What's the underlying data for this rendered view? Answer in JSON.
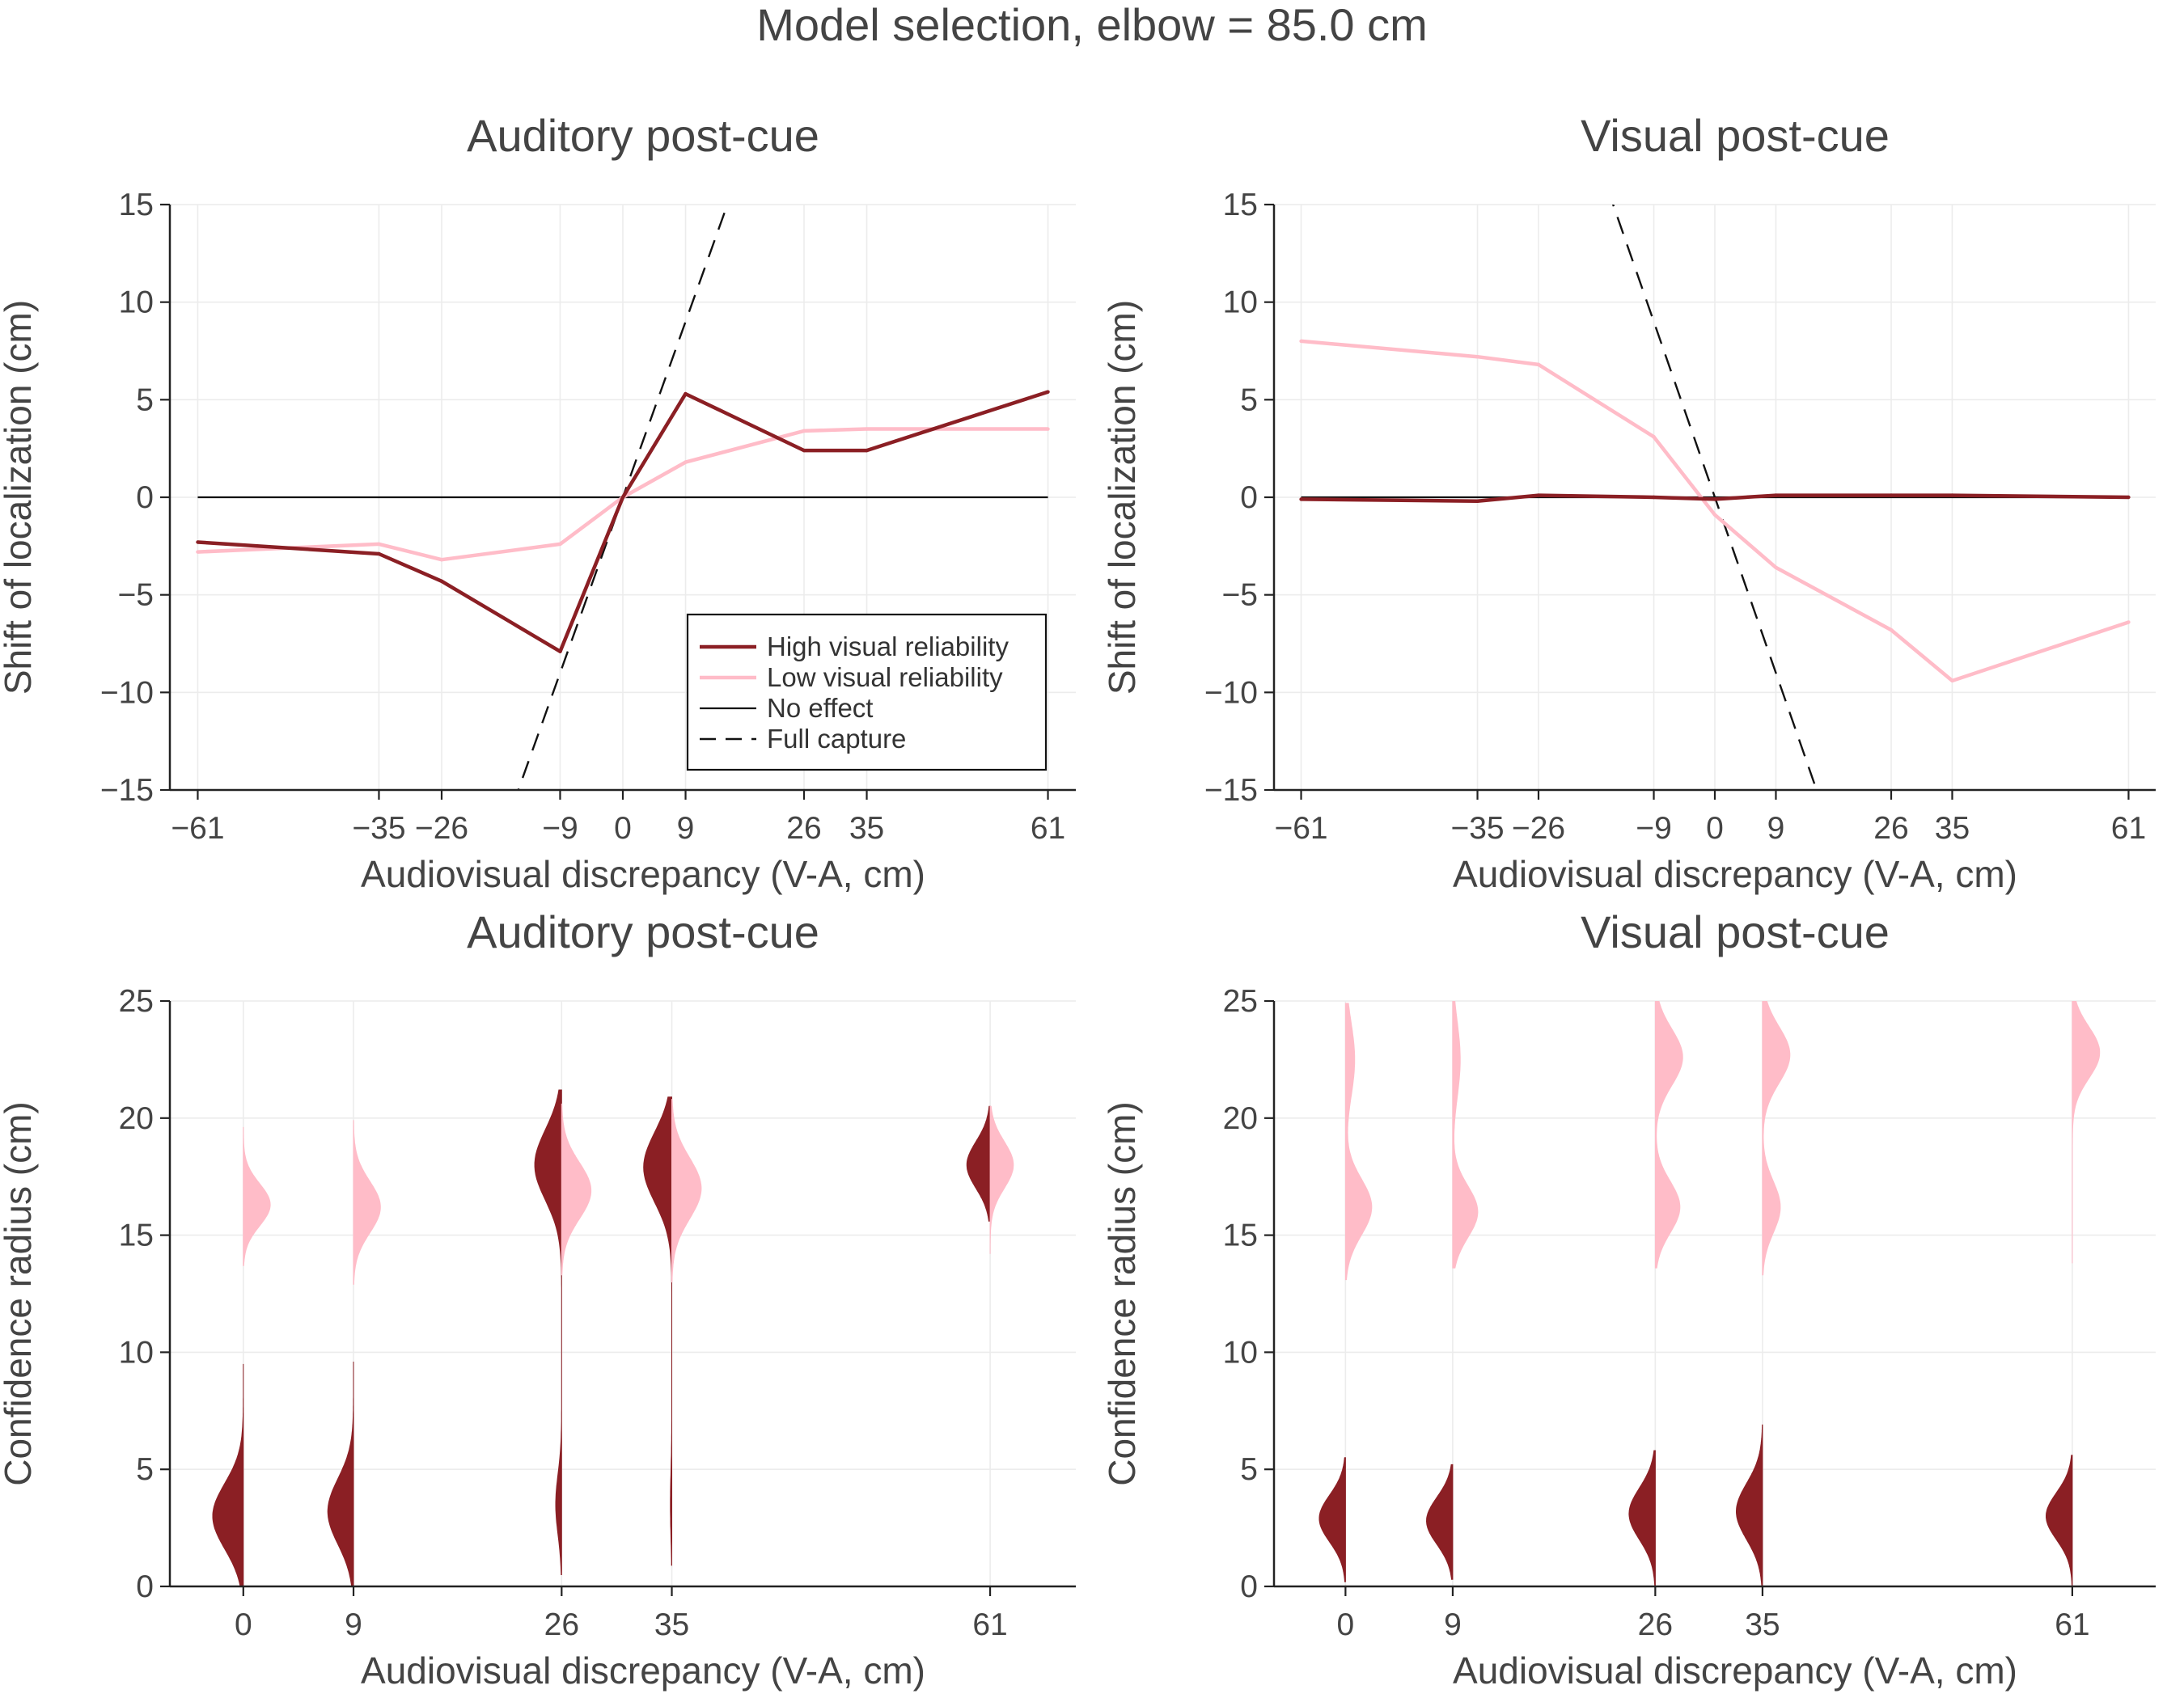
{
  "figure": {
    "title": "Model selection, elbow = 85.0 cm"
  },
  "colors": {
    "high": "#8b1f24",
    "low": "#ffbcc8",
    "no_effect": "#111111",
    "full_capture": "#111111",
    "grid": "#ececec",
    "axis": "#222222"
  },
  "legend": {
    "placement": "lower-right",
    "entries": [
      {
        "label": "High visual reliability",
        "style": "high"
      },
      {
        "label": "Low visual reliability",
        "style": "low"
      },
      {
        "label": "No effect",
        "style": "no_effect"
      },
      {
        "label": "Full capture",
        "style": "full_capture"
      }
    ]
  },
  "chart_data": [
    {
      "type": "line",
      "title": "Auditory post-cue",
      "xlabel": "Audiovisual discrepancy (V-A, cm)",
      "ylabel": "Shift of localization (cm)",
      "x": [
        -61,
        -35,
        -26,
        -9,
        0,
        9,
        26,
        35,
        61
      ],
      "xticklabels": [
        "−61",
        "−35",
        "−26",
        "−9",
        "0",
        "9",
        "26",
        "35",
        "61"
      ],
      "yticks": [
        -15,
        -10,
        -5,
        0,
        5,
        10,
        15
      ],
      "yticklabels": [
        "−15",
        "−10",
        "−5",
        "0",
        "5",
        "10",
        "15"
      ],
      "xlim": [
        -65,
        65
      ],
      "ylim": [
        -15,
        15
      ],
      "grid": true,
      "legend": true,
      "reference_no_effect_slope": 0,
      "reference_full_capture_slope": 1,
      "series": [
        {
          "name": "High visual reliability",
          "style": "high",
          "values": [
            -2.3,
            -2.9,
            -4.3,
            -7.9,
            0.0,
            5.3,
            2.4,
            2.4,
            5.4
          ]
        },
        {
          "name": "Low visual reliability",
          "style": "low",
          "values": [
            -2.8,
            -2.4,
            -3.2,
            -2.4,
            0.0,
            1.8,
            3.4,
            3.5,
            3.5
          ]
        }
      ]
    },
    {
      "type": "line",
      "title": "Visual post-cue",
      "xlabel": "Audiovisual discrepancy (V-A, cm)",
      "ylabel": "Shift of localization (cm)",
      "x": [
        -61,
        -35,
        -26,
        -9,
        0,
        9,
        26,
        35,
        61
      ],
      "xticklabels": [
        "−61",
        "−35",
        "−26",
        "−9",
        "0",
        "9",
        "26",
        "35",
        "61"
      ],
      "yticks": [
        -15,
        -10,
        -5,
        0,
        5,
        10,
        15
      ],
      "yticklabels": [
        "−15",
        "−10",
        "−5",
        "0",
        "5",
        "10",
        "15"
      ],
      "xlim": [
        -65,
        65
      ],
      "ylim": [
        -15,
        15
      ],
      "grid": true,
      "legend": false,
      "reference_no_effect_slope": 0,
      "reference_full_capture_slope": -1,
      "series": [
        {
          "name": "High visual reliability",
          "style": "high",
          "values": [
            -0.1,
            -0.2,
            0.1,
            0.0,
            -0.1,
            0.1,
            0.1,
            0.1,
            0.0
          ]
        },
        {
          "name": "Low visual reliability",
          "style": "low",
          "values": [
            8.0,
            7.2,
            6.8,
            3.1,
            -0.9,
            -3.6,
            -6.8,
            -9.4,
            -6.4
          ]
        }
      ]
    },
    {
      "type": "violin",
      "title": "Auditory post-cue",
      "xlabel": "Audiovisual discrepancy (V-A, cm)",
      "ylabel": "Confidence radius (cm)",
      "x": [
        0,
        9,
        26,
        35,
        61
      ],
      "xticklabels": [
        "0",
        "9",
        "26",
        "35",
        "61"
      ],
      "yticks": [
        0,
        5,
        10,
        15,
        20,
        25
      ],
      "yticklabels": [
        "0",
        "5",
        "10",
        "15",
        "20",
        "25"
      ],
      "xlim": [
        -6,
        68
      ],
      "ylim": [
        0,
        25
      ],
      "grid": true,
      "violins": [
        {
          "x": 0,
          "side": "left",
          "style": "high",
          "lo": 0.0,
          "hi": 9.5,
          "comps": [
            {
              "mu": 3.0,
              "sd": 1.4,
              "w": 1.0,
              "amp": 2.5
            },
            {
              "mu": 17.3,
              "sd": 1.1,
              "w": 0.5,
              "amp": 0.3
            }
          ]
        },
        {
          "x": 0,
          "side": "right",
          "style": "low",
          "lo": 13.7,
          "hi": 19.6,
          "comps": [
            {
              "mu": 16.3,
              "sd": 0.9,
              "w": 1.0,
              "amp": 2.2
            }
          ]
        },
        {
          "x": 9,
          "side": "left",
          "style": "high",
          "lo": 0.0,
          "hi": 9.6,
          "comps": [
            {
              "mu": 3.2,
              "sd": 1.4,
              "w": 1.0,
              "amp": 2.1
            },
            {
              "mu": 17.2,
              "sd": 1.2,
              "w": 0.5,
              "amp": 0.3
            }
          ]
        },
        {
          "x": 9,
          "side": "right",
          "style": "low",
          "lo": 12.9,
          "hi": 19.9,
          "comps": [
            {
              "mu": 16.2,
              "sd": 1.1,
              "w": 1.0,
              "amp": 2.2
            }
          ]
        },
        {
          "x": 26,
          "side": "left",
          "style": "high",
          "lo": 0.5,
          "hi": 21.2,
          "comps": [
            {
              "mu": 18.0,
              "sd": 1.5,
              "w": 1.0,
              "amp": 2.2
            },
            {
              "mu": 3.5,
              "sd": 1.3,
              "w": 0.22,
              "amp": 0.5
            }
          ]
        },
        {
          "x": 26,
          "side": "right",
          "style": "low",
          "lo": 13.3,
          "hi": 20.6,
          "comps": [
            {
              "mu": 16.9,
              "sd": 1.2,
              "w": 1.0,
              "amp": 2.4
            }
          ]
        },
        {
          "x": 35,
          "side": "left",
          "style": "high",
          "lo": 0.9,
          "hi": 20.9,
          "comps": [
            {
              "mu": 17.9,
              "sd": 1.5,
              "w": 1.0,
              "amp": 2.3
            },
            {
              "mu": 3.5,
              "sd": 1.4,
              "w": 0.05,
              "amp": 0.1
            }
          ]
        },
        {
          "x": 35,
          "side": "right",
          "style": "low",
          "lo": 13.0,
          "hi": 20.8,
          "comps": [
            {
              "mu": 17.0,
              "sd": 1.3,
              "w": 1.0,
              "amp": 2.4
            }
          ]
        },
        {
          "x": 61,
          "side": "left",
          "style": "high",
          "lo": 15.6,
          "hi": 20.5,
          "comps": [
            {
              "mu": 18.0,
              "sd": 1.0,
              "w": 1.0,
              "amp": 1.9
            }
          ]
        },
        {
          "x": 61,
          "side": "right",
          "style": "low",
          "lo": 14.2,
          "hi": 20.5,
          "comps": [
            {
              "mu": 18.0,
              "sd": 1.0,
              "w": 1.0,
              "amp": 1.9
            }
          ]
        }
      ]
    },
    {
      "type": "violin",
      "title": "Visual post-cue",
      "xlabel": "Audiovisual discrepancy (V-A, cm)",
      "ylabel": "Confidence radius (cm)",
      "x": [
        0,
        9,
        26,
        35,
        61
      ],
      "xticklabels": [
        "0",
        "9",
        "26",
        "35",
        "61"
      ],
      "yticks": [
        0,
        5,
        10,
        15,
        20,
        25
      ],
      "yticklabels": [
        "0",
        "5",
        "10",
        "15",
        "20",
        "25"
      ],
      "xlim": [
        -6,
        68
      ],
      "ylim": [
        0,
        25
      ],
      "grid": true,
      "violins": [
        {
          "x": 0,
          "side": "left",
          "style": "high",
          "lo": 0.2,
          "hi": 5.5,
          "comps": [
            {
              "mu": 2.9,
              "sd": 1.0,
              "w": 1.0,
              "amp": 2.2
            }
          ]
        },
        {
          "x": 0,
          "side": "right",
          "style": "low",
          "lo": 13.1,
          "hi": 24.9,
          "comps": [
            {
              "mu": 16.2,
              "sd": 1.2,
              "w": 1.0,
              "amp": 2.2
            },
            {
              "mu": 22.5,
              "sd": 1.6,
              "w": 0.35,
              "amp": 0.8
            }
          ]
        },
        {
          "x": 9,
          "side": "left",
          "style": "high",
          "lo": 0.3,
          "hi": 5.2,
          "comps": [
            {
              "mu": 2.8,
              "sd": 1.0,
              "w": 1.0,
              "amp": 2.2
            }
          ]
        },
        {
          "x": 9,
          "side": "right",
          "style": "low",
          "lo": 13.6,
          "hi": 25.0,
          "comps": [
            {
              "mu": 16.0,
              "sd": 1.1,
              "w": 1.0,
              "amp": 2.1
            },
            {
              "mu": 22.5,
              "sd": 1.6,
              "w": 0.3,
              "amp": 0.6
            }
          ]
        },
        {
          "x": 26,
          "side": "left",
          "style": "high",
          "lo": 0.0,
          "hi": 5.8,
          "comps": [
            {
              "mu": 3.1,
              "sd": 1.1,
              "w": 1.0,
              "amp": 2.2
            }
          ]
        },
        {
          "x": 26,
          "side": "right",
          "style": "low",
          "lo": 13.6,
          "hi": 25.0,
          "comps": [
            {
              "mu": 22.6,
              "sd": 1.2,
              "w": 1.0,
              "amp": 2.3
            },
            {
              "mu": 16.2,
              "sd": 1.1,
              "w": 0.9,
              "amp": 2.0
            }
          ]
        },
        {
          "x": 35,
          "side": "left",
          "style": "high",
          "lo": 0.0,
          "hi": 6.9,
          "comps": [
            {
              "mu": 3.2,
              "sd": 1.2,
              "w": 1.0,
              "amp": 2.2
            }
          ]
        },
        {
          "x": 35,
          "side": "right",
          "style": "low",
          "lo": 13.3,
          "hi": 25.0,
          "comps": [
            {
              "mu": 22.7,
              "sd": 1.2,
              "w": 1.0,
              "amp": 2.3
            },
            {
              "mu": 16.2,
              "sd": 1.1,
              "w": 0.65,
              "amp": 1.5
            }
          ]
        },
        {
          "x": 61,
          "side": "left",
          "style": "high",
          "lo": 0.0,
          "hi": 5.6,
          "comps": [
            {
              "mu": 3.0,
              "sd": 1.0,
              "w": 1.0,
              "amp": 2.2
            }
          ]
        },
        {
          "x": 61,
          "side": "right",
          "style": "low",
          "lo": 13.8,
          "hi": 25.0,
          "comps": [
            {
              "mu": 22.8,
              "sd": 1.1,
              "w": 1.0,
              "amp": 2.3
            }
          ]
        }
      ]
    }
  ]
}
